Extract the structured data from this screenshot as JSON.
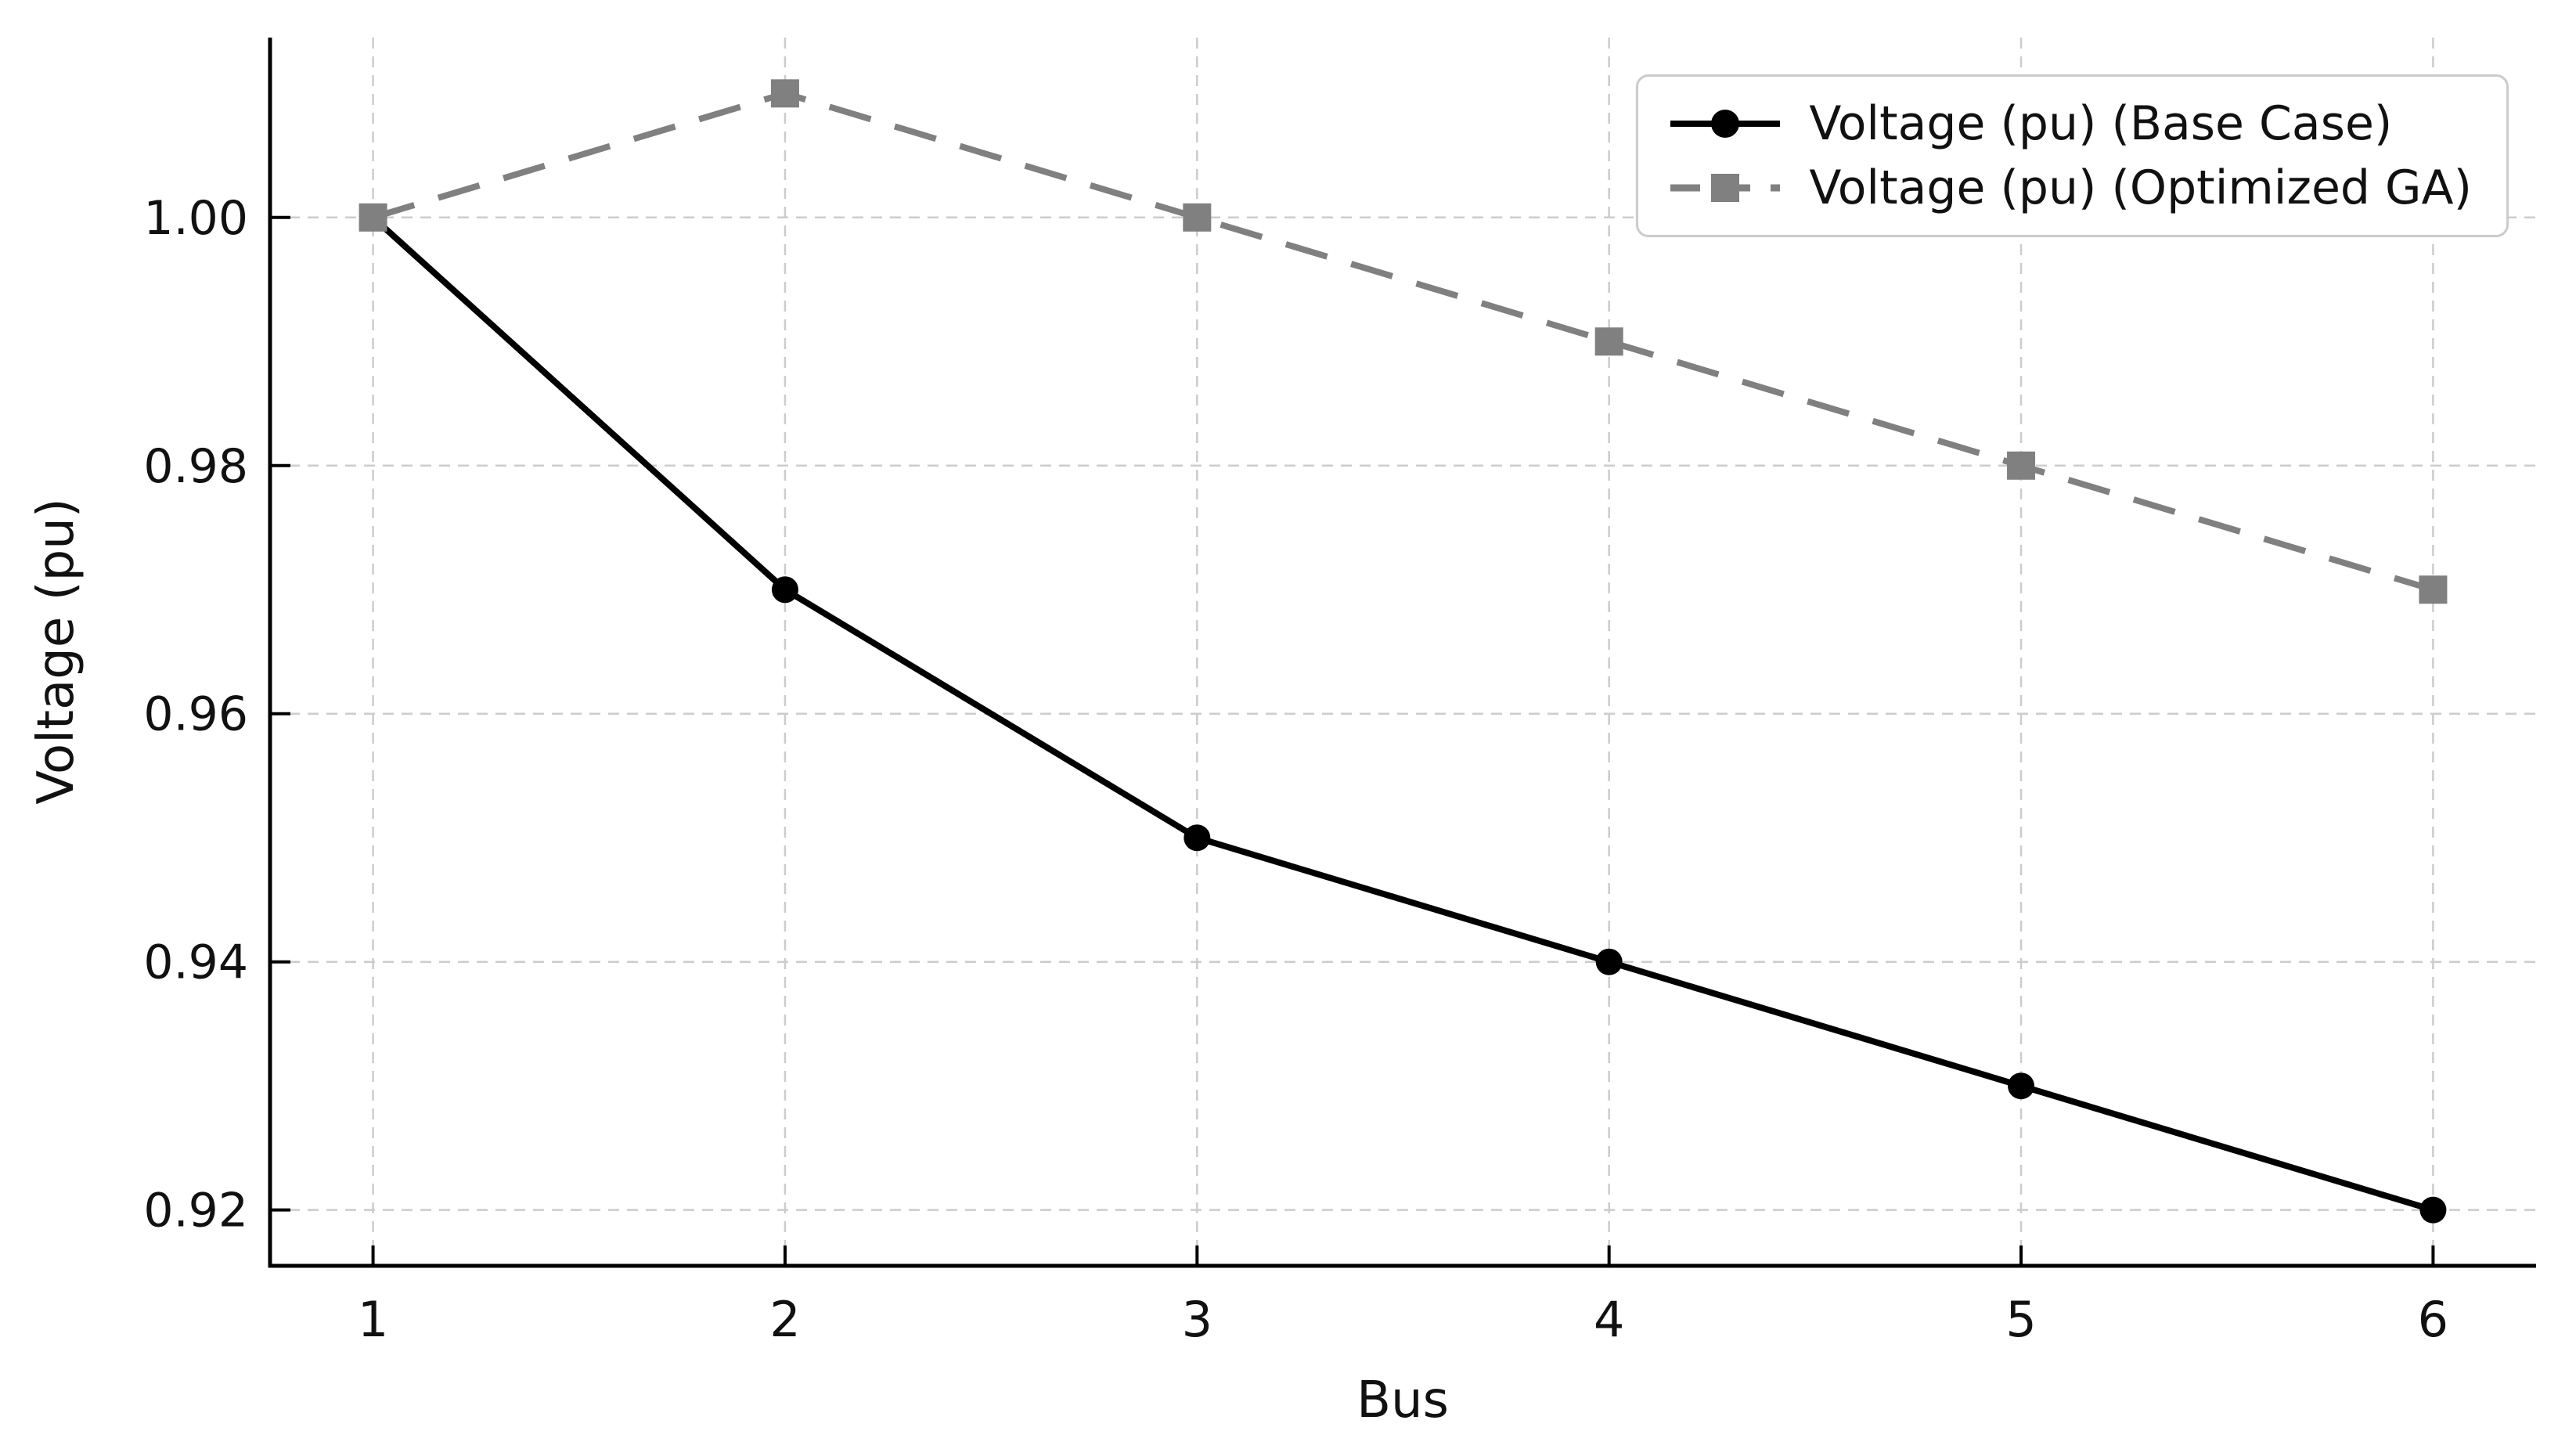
{
  "chart_data": {
    "type": "line",
    "xlabel": "Bus",
    "ylabel": "Voltage (pu)",
    "x": [
      1,
      2,
      3,
      4,
      5,
      6
    ],
    "xtick_labels": [
      "1",
      "2",
      "3",
      "4",
      "5",
      "6"
    ],
    "yticks": [
      1.0,
      0.98,
      0.96,
      0.94,
      0.92
    ],
    "ytick_labels": [
      "1.00",
      "0.98",
      "0.96",
      "0.94",
      "0.92"
    ],
    "xlim": [
      0.75,
      6.25
    ],
    "ylim": [
      0.9155,
      1.0145
    ],
    "grid": true,
    "legend_position": "upper right",
    "series": [
      {
        "name": "Voltage (pu) (Base Case)",
        "values": [
          1.0,
          0.97,
          0.95,
          0.94,
          0.93,
          0.92
        ],
        "color": "#000000",
        "line_style": "solid",
        "marker": "circle"
      },
      {
        "name": "Voltage (pu) (Optimized GA)",
        "values": [
          1.0,
          1.01,
          1.0,
          0.99,
          0.98,
          0.97
        ],
        "color": "#808080",
        "line_style": "dashed",
        "marker": "square"
      }
    ],
    "colors": {
      "grid": "#cccccc",
      "spine": "#000000",
      "text": "#111111",
      "legend_border": "#cccccc"
    }
  }
}
